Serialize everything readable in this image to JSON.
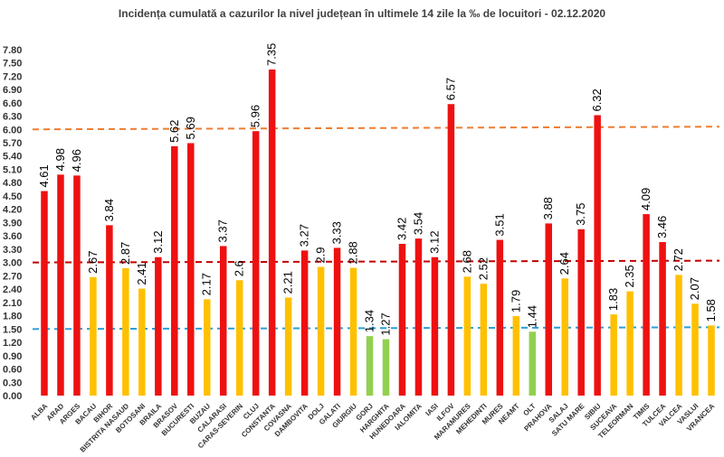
{
  "chart_data": {
    "type": "bar",
    "title": "Incidența cumulată a cazurilor la nivel județean în ultimele 14 zile la ‰ de locuitori - 02.12.2020",
    "xlabel": "",
    "ylabel": "",
    "ylim": [
      0,
      8.0
    ],
    "yticks": [
      "0.00",
      "0.30",
      "0.60",
      "0.90",
      "1.20",
      "1.50",
      "1.80",
      "2.10",
      "2.40",
      "2.70",
      "3.00",
      "3.30",
      "3.60",
      "3.90",
      "4.20",
      "4.50",
      "4.80",
      "5.10",
      "5.40",
      "5.70",
      "6.00",
      "6.30",
      "6.60",
      "6.90",
      "7.20",
      "7.50",
      "7.80"
    ],
    "grid": false,
    "categories": [
      "ALBA",
      "ARAD",
      "ARGES",
      "BACAU",
      "BIHOR",
      "BISTRITA NASAUD",
      "BOTOSANI",
      "BRAILA",
      "BRASOV",
      "BUCURESTI",
      "BUZAU",
      "CALARASI",
      "CARAS-SEVERIN",
      "CLUJ",
      "CONSTANTA",
      "COVASNA",
      "DAMBOVITA",
      "DOLJ",
      "GALATI",
      "GIURGIU",
      "GORJ",
      "HARGHITA",
      "HUNEDOARA",
      "IALOMITA",
      "IASI",
      "ILFOV",
      "MARAMURES",
      "MEHEDINTI",
      "MURES",
      "NEAMT",
      "OLT",
      "PRAHOVA",
      "SALAJ",
      "SATU MARE",
      "SIBIU",
      "SUCEAVA",
      "TELEORMAN",
      "TIMIS",
      "TULCEA",
      "VALCEA",
      "VASLUI",
      "VRANCEA"
    ],
    "values": [
      4.61,
      4.98,
      4.96,
      2.67,
      3.84,
      2.87,
      2.41,
      3.12,
      5.62,
      5.69,
      2.17,
      3.37,
      2.6,
      5.96,
      7.35,
      2.21,
      3.27,
      2.9,
      3.33,
      2.88,
      1.34,
      1.27,
      3.42,
      3.54,
      3.12,
      6.57,
      2.68,
      2.52,
      3.51,
      1.79,
      1.44,
      3.88,
      2.64,
      3.75,
      6.32,
      1.83,
      2.35,
      4.09,
      3.46,
      2.72,
      2.07,
      1.58
    ],
    "value_labels": [
      "4.61",
      "4.98",
      "4.96",
      "2.67",
      "3.84",
      "2.87",
      "2.41",
      "3.12",
      "5.62",
      "5.69",
      "2.17",
      "3.37",
      "2.6",
      "5.96",
      "7.35",
      "2.21",
      "3.27",
      "2.9",
      "3.33",
      "2.88",
      "1.34",
      "1.27",
      "3.42",
      "3.54",
      "3.12",
      "6.57",
      "2.68",
      "2.52",
      "3.51",
      "1.79",
      "1.44",
      "3.88",
      "2.64",
      "3.75",
      "6.32",
      "1.83",
      "2.35",
      "4.09",
      "3.46",
      "2.72",
      "2.07",
      "1.58"
    ],
    "bar_colors": [
      "#ee1111",
      "#ee1111",
      "#ee1111",
      "#ffc000",
      "#ee1111",
      "#ffc000",
      "#ffc000",
      "#ee1111",
      "#ee1111",
      "#ee1111",
      "#ffc000",
      "#ee1111",
      "#ffc000",
      "#ee1111",
      "#ee1111",
      "#ffc000",
      "#ee1111",
      "#ffc000",
      "#ee1111",
      "#ffc000",
      "#92d050",
      "#92d050",
      "#ee1111",
      "#ee1111",
      "#ee1111",
      "#ee1111",
      "#ffc000",
      "#ffc000",
      "#ee1111",
      "#ffc000",
      "#92d050",
      "#ee1111",
      "#ffc000",
      "#ee1111",
      "#ee1111",
      "#ffc000",
      "#ffc000",
      "#ee1111",
      "#ee1111",
      "#ffc000",
      "#ffc000",
      "#ffc000"
    ],
    "reference_lines": [
      {
        "value": 6.0,
        "color": "#ed7d31"
      },
      {
        "value": 3.0,
        "color": "#c00000"
      },
      {
        "value": 1.5,
        "color": "#2aa0d8"
      }
    ]
  }
}
